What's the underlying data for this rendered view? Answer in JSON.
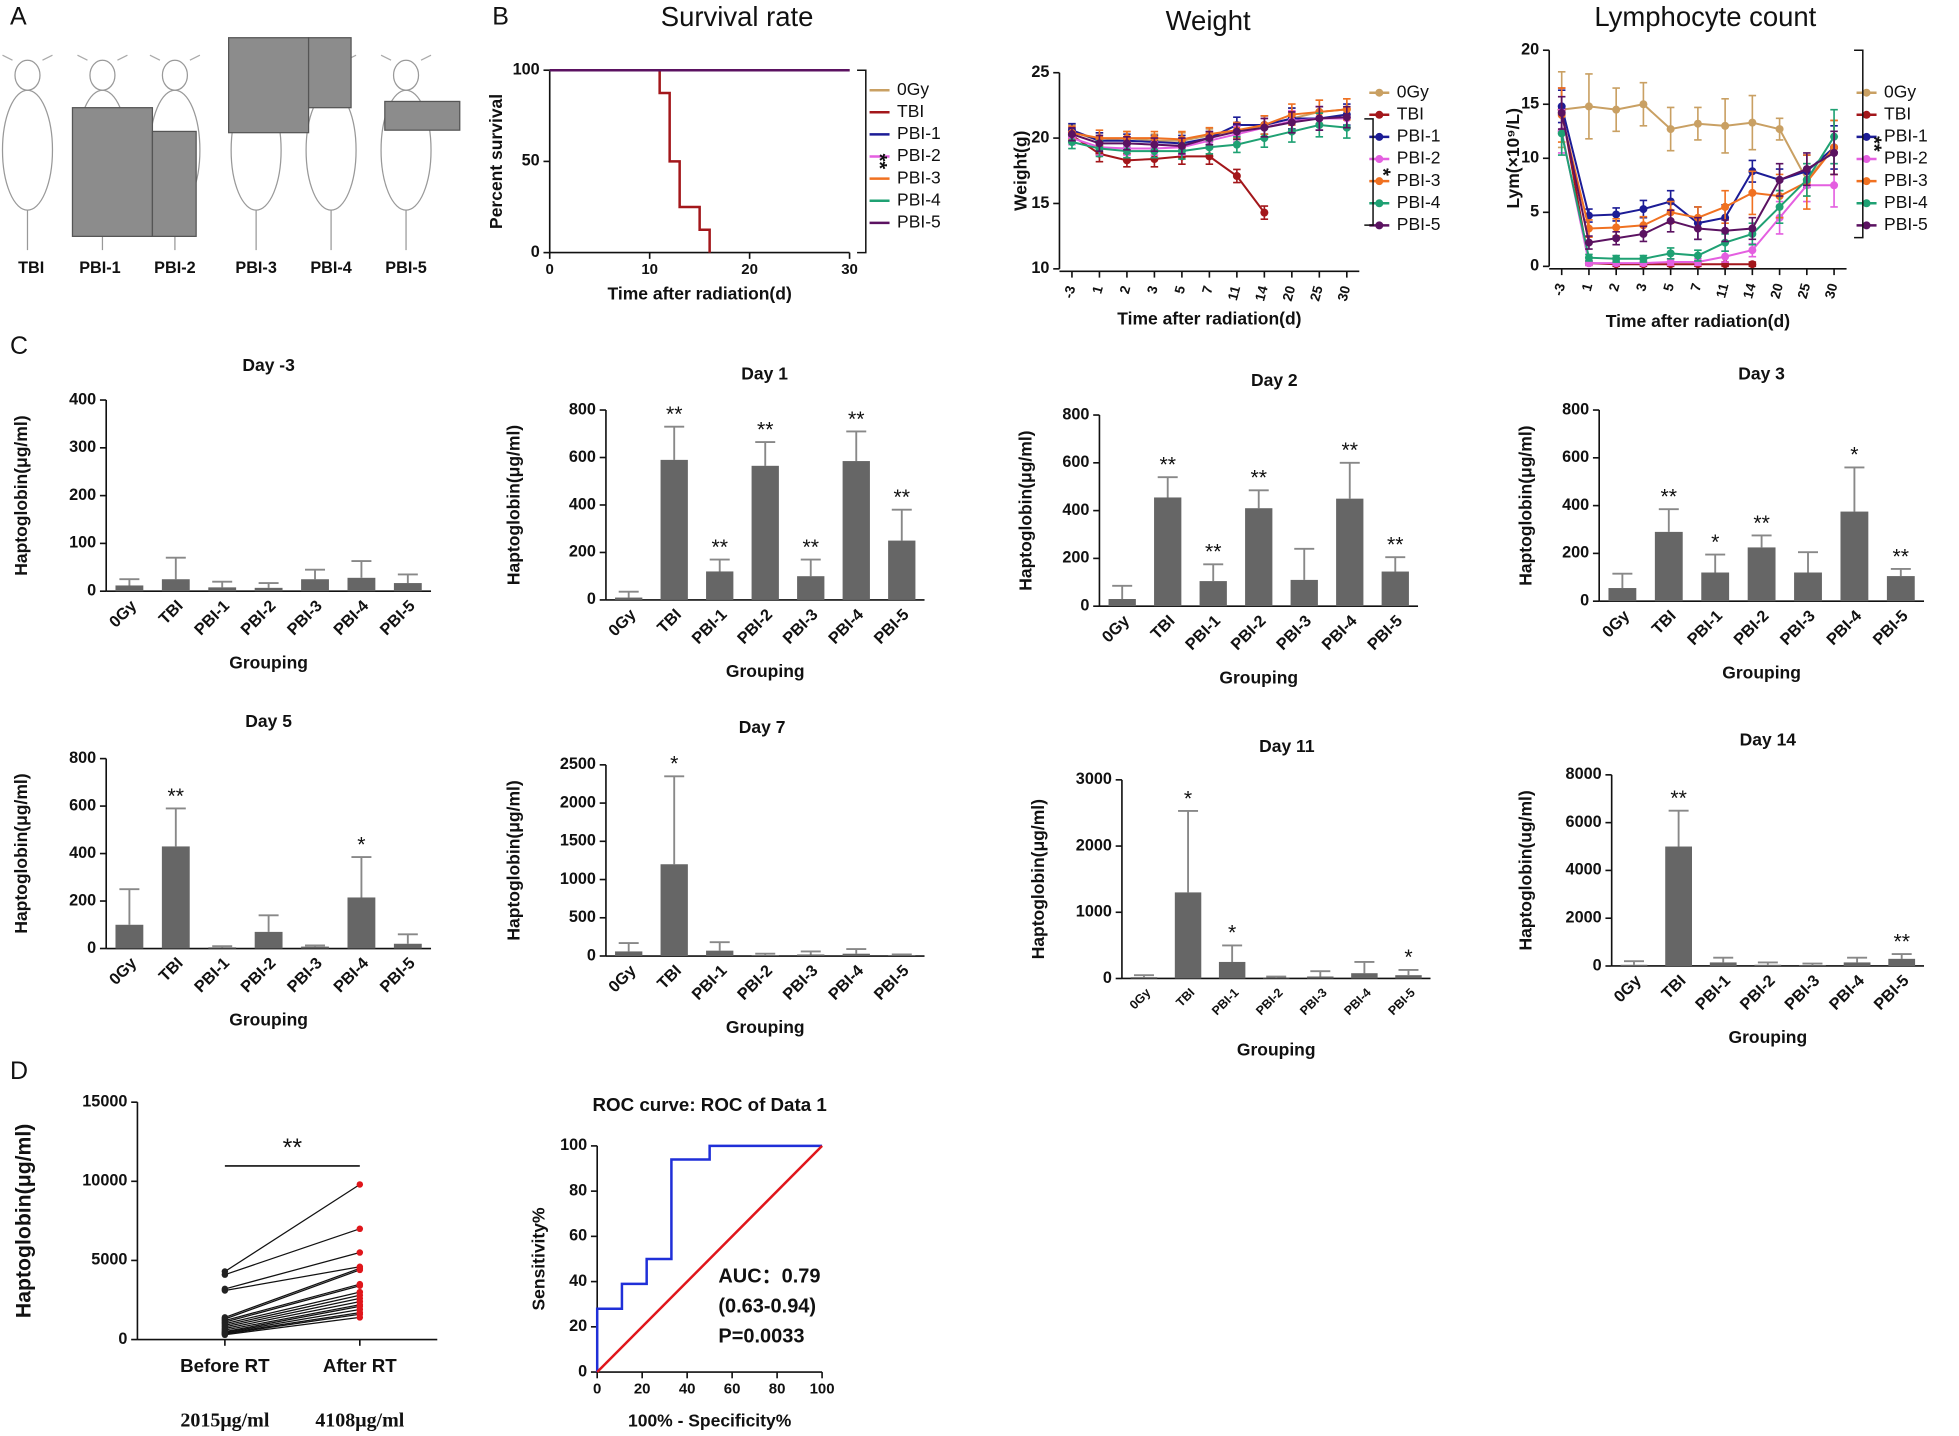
{
  "panel_labels": [
    "A",
    "B",
    "C",
    "D"
  ],
  "panel_a": {
    "labels": [
      "TBI",
      "PBI-1",
      "PBI-2",
      "PBI-3",
      "PBI-4",
      "PBI-5"
    ]
  },
  "chart_data": [
    {
      "type": "line",
      "title": "Survival rate",
      "x_label": "Time after radiation(d)",
      "y_label": "Percent survival",
      "xlim": [
        0,
        30
      ],
      "xticks": [
        0,
        10,
        20,
        30
      ],
      "ylim": [
        0,
        100
      ],
      "yticks": [
        0,
        50,
        100
      ],
      "legend": "right",
      "annotation": "**",
      "series": [
        {
          "name": "0Gy",
          "color": "#c9a063",
          "x": [
            0,
            30
          ],
          "values": [
            100,
            100
          ]
        },
        {
          "name": "TBI",
          "color": "#a3171b",
          "x": [
            0,
            11,
            11,
            12,
            12,
            13,
            13,
            15,
            15,
            16,
            16
          ],
          "values": [
            100,
            100,
            87.5,
            87.5,
            50,
            50,
            25,
            25,
            12.5,
            12.5,
            0
          ]
        },
        {
          "name": "PBI-1",
          "color": "#1c1c96",
          "x": [
            0,
            30
          ],
          "values": [
            100,
            100
          ]
        },
        {
          "name": "PBI-2",
          "color": "#e45fe0",
          "x": [
            0,
            30
          ],
          "values": [
            100,
            100
          ]
        },
        {
          "name": "PBI-3",
          "color": "#f07121",
          "x": [
            0,
            30
          ],
          "values": [
            100,
            100
          ]
        },
        {
          "name": "PBI-4",
          "color": "#1fa173",
          "x": [
            0,
            30
          ],
          "values": [
            100,
            100
          ]
        },
        {
          "name": "PBI-5",
          "color": "#5b1261",
          "x": [
            0,
            30
          ],
          "values": [
            100,
            100
          ]
        }
      ]
    },
    {
      "type": "line",
      "title": "Weight",
      "x_label": "Time after radiation(d)",
      "y_label": "Weight(g)",
      "markers": true,
      "categories": [
        "-3",
        "1",
        "2",
        "3",
        "5",
        "7",
        "11",
        "14",
        "20",
        "25",
        "30"
      ],
      "ylim": [
        10,
        25
      ],
      "yticks": [
        10,
        15,
        20,
        25
      ],
      "legend": "right",
      "annotation": "*",
      "series": [
        {
          "name": "0Gy",
          "color": "#c9a063",
          "values": [
            20.5,
            19.8,
            20,
            19.8,
            19.8,
            20.2,
            20.5,
            21,
            21.5,
            22,
            22.2
          ],
          "errors": [
            0.5,
            0.6,
            0.5,
            0.5,
            0.6,
            0.5,
            0.6,
            0.7,
            0.8,
            0.9,
            0.8
          ]
        },
        {
          "name": "TBI",
          "color": "#a3171b",
          "values": [
            20.2,
            18.8,
            18.3,
            18.4,
            18.6,
            18.6,
            17.1,
            14.3,
            null,
            null,
            null
          ],
          "errors": [
            0.5,
            0.6,
            0.5,
            0.6,
            0.6,
            0.6,
            0.5,
            0.5,
            null,
            null,
            null
          ]
        },
        {
          "name": "PBI-1",
          "color": "#1c1c96",
          "values": [
            20.6,
            19.8,
            19.8,
            19.7,
            19.6,
            20,
            21,
            21,
            21.5,
            21.5,
            21.8
          ],
          "errors": [
            0.5,
            0.6,
            0.5,
            0.5,
            0.6,
            0.5,
            0.6,
            0.7,
            0.8,
            0.9,
            0.8
          ]
        },
        {
          "name": "PBI-2",
          "color": "#e45fe0",
          "values": [
            20,
            19.3,
            19.2,
            19.2,
            19.3,
            19.8,
            20.3,
            20.8,
            21.3,
            21.5,
            21.5
          ],
          "errors": [
            0.5,
            0.6,
            0.5,
            0.5,
            0.6,
            0.5,
            0.6,
            0.7,
            0.8,
            0.9,
            0.8
          ]
        },
        {
          "name": "PBI-3",
          "color": "#f07121",
          "values": [
            20.4,
            20,
            20,
            20,
            19.9,
            20.3,
            20.6,
            21,
            21.8,
            22,
            22.2
          ],
          "errors": [
            0.5,
            0.6,
            0.5,
            0.5,
            0.6,
            0.5,
            0.6,
            0.7,
            0.8,
            0.9,
            0.8
          ]
        },
        {
          "name": "PBI-4",
          "color": "#1fa173",
          "values": [
            19.7,
            19.2,
            19,
            19,
            19,
            19.3,
            19.5,
            20,
            20.5,
            21,
            20.8
          ],
          "errors": [
            0.5,
            0.6,
            0.5,
            0.5,
            0.6,
            0.5,
            0.6,
            0.7,
            0.8,
            0.9,
            0.8
          ]
        },
        {
          "name": "PBI-5",
          "color": "#5b1261",
          "values": [
            20.3,
            19.6,
            19.6,
            19.5,
            19.4,
            20,
            20.5,
            20.8,
            21.2,
            21.5,
            21.6
          ],
          "errors": [
            0.5,
            0.6,
            0.5,
            0.5,
            0.6,
            0.5,
            0.6,
            0.7,
            0.8,
            0.9,
            0.8
          ]
        }
      ]
    },
    {
      "type": "line",
      "title": "Lymphocyte count",
      "x_label": "Time after radiation(d)",
      "y_label": "Lym(×10⁹/L)",
      "markers": true,
      "categories": [
        "-3",
        "1",
        "2",
        "3",
        "5",
        "7",
        "11",
        "14",
        "20",
        "25",
        "30"
      ],
      "ylim": [
        0,
        20
      ],
      "yticks": [
        0,
        5,
        10,
        15,
        20
      ],
      "legend": "right",
      "annotation": "**",
      "series": [
        {
          "name": "0Gy",
          "color": "#c9a063",
          "values": [
            14.5,
            14.8,
            14.5,
            15,
            12.7,
            13.2,
            13,
            13.3,
            12.7,
            8,
            11
          ],
          "errors": [
            3.5,
            3,
            2,
            2,
            2,
            1.5,
            2.5,
            2.5,
            1,
            1.5,
            2.5
          ]
        },
        {
          "name": "TBI",
          "color": "#a3171b",
          "values": [
            14.5,
            0.3,
            0.2,
            0.2,
            0.2,
            0.2,
            0.2,
            0.2,
            null,
            null,
            null
          ],
          "errors": [
            2,
            0.2,
            0.2,
            0.2,
            0.2,
            0.2,
            0.2,
            0.2,
            null,
            null,
            null
          ]
        },
        {
          "name": "PBI-1",
          "color": "#1c1c96",
          "values": [
            14.8,
            4.7,
            4.8,
            5.3,
            6,
            4,
            4.5,
            8.8,
            8,
            8.8,
            11
          ],
          "errors": [
            1.5,
            0.6,
            0.6,
            0.8,
            1,
            1.5,
            1.2,
            1,
            1,
            1.5,
            2
          ]
        },
        {
          "name": "PBI-2",
          "color": "#e45fe0",
          "values": [
            12.5,
            0.3,
            0.3,
            0.3,
            0.4,
            0.4,
            0.9,
            1.5,
            4.5,
            7.5,
            7.5
          ],
          "errors": [
            2,
            0.2,
            0.2,
            0.2,
            0.3,
            0.3,
            0.5,
            0.6,
            1.5,
            1.5,
            2
          ]
        },
        {
          "name": "PBI-3",
          "color": "#f07121",
          "values": [
            14,
            3.5,
            3.6,
            3.8,
            5,
            4.5,
            5.5,
            6.8,
            6.5,
            7.8,
            11
          ],
          "errors": [
            2.5,
            0.8,
            0.8,
            0.8,
            1,
            1,
            1.5,
            2,
            2,
            2.5,
            2.5
          ]
        },
        {
          "name": "PBI-4",
          "color": "#1fa173",
          "values": [
            12.3,
            0.8,
            0.7,
            0.7,
            1.2,
            1,
            2.2,
            3,
            5.5,
            8,
            12
          ],
          "errors": [
            2,
            0.3,
            0.3,
            0.3,
            0.5,
            0.5,
            0.8,
            1,
            1.5,
            1.5,
            2.5
          ]
        },
        {
          "name": "PBI-5",
          "color": "#5b1261",
          "values": [
            14.2,
            2.2,
            2.6,
            3,
            4.2,
            3.5,
            3.3,
            3.5,
            8,
            9,
            10.5
          ],
          "errors": [
            1.5,
            0.6,
            0.6,
            0.7,
            1,
            1,
            1,
            1,
            1.5,
            1.5,
            2
          ]
        }
      ]
    },
    {
      "type": "bar",
      "title": "Day -3",
      "x_label": "Grouping",
      "y_label": "Haptoglobin(μg/ml)",
      "color": "#666666",
      "categories": [
        "0Gy",
        "TBI",
        "PBI-1",
        "PBI-2",
        "PBI-3",
        "PBI-4",
        "PBI-5"
      ],
      "ylim": [
        0,
        400
      ],
      "yticks": [
        0,
        100,
        200,
        300,
        400
      ],
      "values": [
        12,
        25,
        8,
        7,
        25,
        28,
        17
      ],
      "errors": [
        13,
        45,
        12,
        10,
        20,
        35,
        18
      ],
      "significance": [
        null,
        null,
        null,
        null,
        null,
        null,
        null
      ]
    },
    {
      "type": "bar",
      "title": "Day 1",
      "x_label": "Grouping",
      "y_label": "Haptoglobin(μg/ml)",
      "color": "#666666",
      "categories": [
        "0Gy",
        "TBI",
        "PBI-1",
        "PBI-2",
        "PBI-3",
        "PBI-4",
        "PBI-5"
      ],
      "ylim": [
        0,
        800
      ],
      "yticks": [
        0,
        200,
        400,
        600,
        800
      ],
      "values": [
        10,
        590,
        120,
        565,
        100,
        585,
        250
      ],
      "errors": [
        25,
        140,
        50,
        100,
        70,
        125,
        130
      ],
      "significance": [
        null,
        "**",
        "**",
        "**",
        "**",
        "**",
        "**"
      ]
    },
    {
      "type": "bar",
      "title": "Day 2",
      "x_label": "Grouping",
      "y_label": "Haptoglobin(μg/ml)",
      "color": "#666666",
      "categories": [
        "0Gy",
        "TBI",
        "PBI-1",
        "PBI-2",
        "PBI-3",
        "PBI-4",
        "PBI-5"
      ],
      "ylim": [
        0,
        800
      ],
      "yticks": [
        0,
        200,
        400,
        600,
        800
      ],
      "values": [
        30,
        455,
        105,
        410,
        110,
        450,
        145
      ],
      "errors": [
        55,
        85,
        70,
        75,
        130,
        150,
        60
      ],
      "significance": [
        null,
        "**",
        "**",
        "**",
        null,
        "**",
        "**"
      ]
    },
    {
      "type": "bar",
      "title": "Day 3",
      "x_label": "Grouping",
      "y_label": "Haptoglobin(μg/ml)",
      "color": "#666666",
      "categories": [
        "0Gy",
        "TBI",
        "PBI-1",
        "PBI-2",
        "PBI-3",
        "PBI-4",
        "PBI-5"
      ],
      "ylim": [
        0,
        800
      ],
      "yticks": [
        0,
        200,
        400,
        600,
        800
      ],
      "values": [
        55,
        290,
        120,
        225,
        120,
        375,
        105
      ],
      "errors": [
        60,
        95,
        75,
        50,
        85,
        185,
        30
      ],
      "significance": [
        null,
        "**",
        "*",
        "**",
        null,
        "*",
        "**"
      ]
    },
    {
      "type": "bar",
      "title": "Day 5",
      "x_label": "Grouping",
      "y_label": "Haptoglobin(μg/ml)",
      "color": "#666666",
      "categories": [
        "0Gy",
        "TBI",
        "PBI-1",
        "PBI-2",
        "PBI-3",
        "PBI-4",
        "PBI-5"
      ],
      "ylim": [
        0,
        800
      ],
      "yticks": [
        0,
        200,
        400,
        600,
        800
      ],
      "values": [
        100,
        430,
        5,
        70,
        8,
        215,
        20
      ],
      "errors": [
        150,
        160,
        5,
        70,
        5,
        170,
        40
      ],
      "significance": [
        null,
        "**",
        null,
        null,
        null,
        "*",
        null
      ]
    },
    {
      "type": "bar",
      "title": "Day 7",
      "x_label": "Grouping",
      "y_label": "Haptoglobin(μg/ml)",
      "color": "#666666",
      "categories": [
        "0Gy",
        "TBI",
        "PBI-1",
        "PBI-2",
        "PBI-3",
        "PBI-4",
        "PBI-5"
      ],
      "ylim": [
        0,
        2500
      ],
      "yticks": [
        0,
        500,
        1000,
        1500,
        2000,
        2500
      ],
      "values": [
        60,
        1200,
        70,
        10,
        20,
        30,
        10
      ],
      "errors": [
        110,
        1150,
        110,
        20,
        40,
        60,
        10
      ],
      "significance": [
        null,
        "*",
        null,
        null,
        null,
        null,
        null
      ]
    },
    {
      "type": "bar",
      "title": "Day 11",
      "x_label": "Grouping",
      "y_label": "Haptoglobin(μg/ml)",
      "color": "#666666",
      "categories": [
        "0Gy",
        "TBI",
        "PBI-1",
        "PBI-2",
        "PBI-3",
        "PBI-4",
        "PBI-5"
      ],
      "ylim": [
        0,
        3000
      ],
      "yticks": [
        0,
        1000,
        2000,
        3000
      ],
      "values": [
        20,
        1300,
        250,
        10,
        30,
        80,
        50
      ],
      "errors": [
        30,
        1230,
        250,
        20,
        80,
        170,
        80
      ],
      "significance": [
        null,
        "*",
        "*",
        null,
        null,
        null,
        "*"
      ]
    },
    {
      "type": "bar",
      "title": "Day 14",
      "x_label": "Grouping",
      "y_label": "Haptoglobin(ug/ml)",
      "color": "#666666",
      "categories": [
        "0Gy",
        "TBI",
        "PBI-1",
        "PBI-2",
        "PBI-3",
        "PBI-4",
        "PBI-5"
      ],
      "ylim": [
        0,
        8000
      ],
      "yticks": [
        0,
        2000,
        4000,
        6000,
        8000
      ],
      "values": [
        50,
        5000,
        150,
        50,
        30,
        150,
        300
      ],
      "errors": [
        150,
        1500,
        200,
        100,
        70,
        200,
        200
      ],
      "significance": [
        null,
        "**",
        null,
        null,
        null,
        null,
        "**"
      ]
    },
    {
      "type": "paired",
      "y_label": "Haptoglobin(μg/ml)",
      "categories": [
        "Before RT",
        "After RT"
      ],
      "ylim": [
        0,
        15000
      ],
      "yticks": [
        0,
        5000,
        10000,
        15000
      ],
      "annotation": "**",
      "summary": [
        "2015μg/ml",
        "4108μg/ml"
      ],
      "before": [
        4300,
        4100,
        3200,
        3100,
        1400,
        1300,
        1200,
        1100,
        1000,
        900,
        800,
        700,
        600,
        500,
        450,
        400,
        350,
        300
      ],
      "after": [
        9800,
        7000,
        5500,
        4600,
        4500,
        4400,
        3500,
        3400,
        3000,
        2800,
        2600,
        2400,
        2200,
        2100,
        1900,
        1700,
        1600,
        1400
      ]
    },
    {
      "type": "line",
      "title": "ROC curve: ROC of Data 1",
      "x_label": "100% - Specificity%",
      "y_label": "Sensitivity%",
      "xlim": [
        0,
        100
      ],
      "xticks": [
        0,
        20,
        40,
        60,
        80,
        100
      ],
      "ylim": [
        0,
        100
      ],
      "yticks": [
        0,
        20,
        40,
        60,
        80,
        100
      ],
      "annotations": [
        "AUC：0.79",
        "(0.63-0.94)",
        "P=0.0033"
      ],
      "series": [
        {
          "color": "#1f2fd8",
          "x": [
            0,
            0,
            11,
            11,
            22,
            22,
            33,
            33,
            50,
            50,
            100
          ],
          "values": [
            0,
            28,
            28,
            39,
            39,
            50,
            50,
            94,
            94,
            100,
            100
          ]
        },
        {
          "color": "#e0161b",
          "x": [
            0,
            100
          ],
          "values": [
            0,
            100
          ]
        }
      ]
    }
  ]
}
